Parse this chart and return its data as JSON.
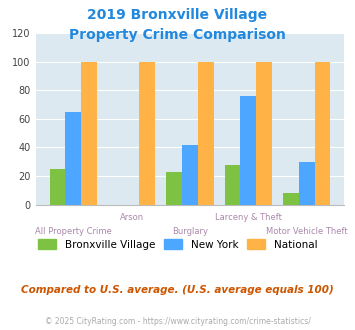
{
  "title_line1": "2019 Bronxville Village",
  "title_line2": "Property Crime Comparison",
  "categories": [
    "All Property Crime",
    "Arson",
    "Burglary",
    "Larceny & Theft",
    "Motor Vehicle Theft"
  ],
  "bronxville": [
    25,
    0,
    23,
    28,
    8
  ],
  "new_york": [
    65,
    0,
    42,
    76,
    30
  ],
  "national": [
    100,
    100,
    100,
    100,
    100
  ],
  "bar_colors": {
    "bronxville": "#7dc242",
    "new_york": "#4da6ff",
    "national": "#ffb347"
  },
  "ylim": [
    0,
    120
  ],
  "yticks": [
    0,
    20,
    40,
    60,
    80,
    100,
    120
  ],
  "background_color": "#dce9f0",
  "title_color": "#2288dd",
  "xlabel_color": "#aa88aa",
  "legend_labels": [
    "Bronxville Village",
    "New York",
    "National"
  ],
  "note_text": "Compared to U.S. average. (U.S. average equals 100)",
  "footer_text": "© 2025 CityRating.com - https://www.cityrating.com/crime-statistics/",
  "note_color": "#cc5500",
  "footer_color": "#aaaaaa",
  "footer_link_color": "#4488cc"
}
